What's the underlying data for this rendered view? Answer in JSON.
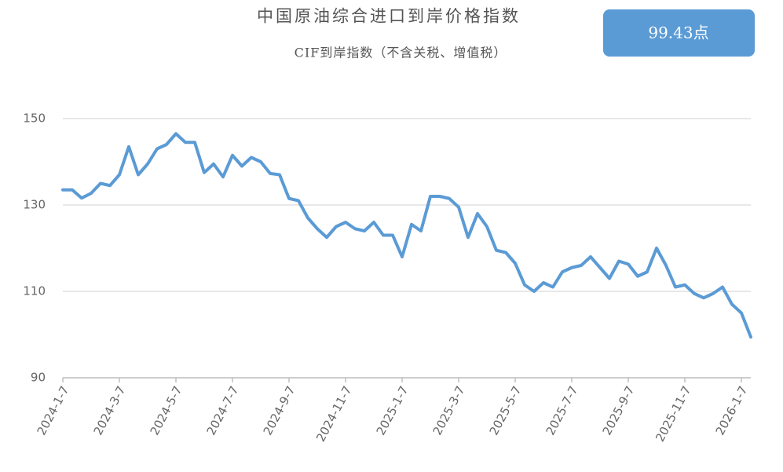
{
  "chart_data": {
    "type": "line",
    "title": "中国原油综合进口到岸价格指数",
    "subtitle": "CIF到岸指数（不含关税、增值税）",
    "badge": "99.43点",
    "categories": [
      "2024-1-7",
      null,
      null,
      null,
      null,
      null,
      "2024-3-7",
      null,
      null,
      null,
      null,
      null,
      "2024-5-7",
      null,
      null,
      null,
      null,
      null,
      "2024-7-7",
      null,
      null,
      null,
      null,
      null,
      "2024-9-7",
      null,
      null,
      null,
      null,
      null,
      "2024-11-7",
      null,
      null,
      null,
      null,
      null,
      "2025-1-7",
      null,
      null,
      null,
      null,
      null,
      "2025-3-7",
      null,
      null,
      null,
      null,
      null,
      "2025-5-7",
      null,
      null,
      null,
      null,
      null,
      "2025-7-7",
      null,
      null,
      null,
      null,
      null,
      "2025-9-7",
      null,
      null,
      null,
      null,
      null,
      "2025-11-7",
      null,
      null,
      null,
      null,
      null,
      "2026-1-7",
      null
    ],
    "values": [
      133.5,
      133.5,
      131.6,
      132.7,
      135,
      134.5,
      137,
      143.5,
      137,
      139.5,
      143,
      144,
      146.5,
      144.5,
      144.5,
      137.5,
      139.5,
      136.5,
      141.5,
      139,
      141,
      140,
      137.3,
      137,
      131.5,
      131,
      127,
      124.5,
      122.5,
      125,
      126,
      124.5,
      124,
      126,
      123,
      123,
      118,
      125.5,
      124,
      132,
      132,
      131.5,
      129.5,
      122.5,
      128,
      125,
      119.5,
      119,
      116.5,
      111.5,
      110,
      112,
      111,
      114.5,
      115.5,
      116,
      118,
      115.5,
      113,
      117,
      116.3,
      113.5,
      114.5,
      120,
      116,
      111,
      111.5,
      109.5,
      108.5,
      109.5,
      111,
      107,
      105,
      99.43
    ],
    "color": "#5b9bd5",
    "ylim": [
      90,
      150
    ],
    "yticks": [
      90,
      110,
      130,
      150
    ],
    "grid": true
  }
}
